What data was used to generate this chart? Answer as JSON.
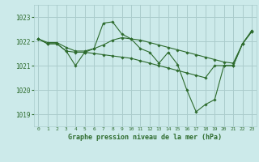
{
  "background_color": "#cceaea",
  "grid_color": "#aacccc",
  "line_color": "#2d6b2d",
  "title": "Graphe pression niveau de la mer (hPa)",
  "xlim": [
    -0.5,
    23.5
  ],
  "ylim": [
    1018.5,
    1023.5
  ],
  "yticks": [
    1019,
    1020,
    1021,
    1022,
    1023
  ],
  "xticks": [
    0,
    1,
    2,
    3,
    4,
    5,
    6,
    7,
    8,
    9,
    10,
    11,
    12,
    13,
    14,
    15,
    16,
    17,
    18,
    19,
    20,
    21,
    22,
    23
  ],
  "series": [
    {
      "x": [
        0,
        1,
        2,
        3,
        4,
        5,
        6,
        7,
        8,
        9,
        10,
        11,
        12,
        13,
        14,
        15,
        16,
        17,
        18,
        19,
        20,
        21,
        22,
        23
      ],
      "y": [
        1022.1,
        1021.9,
        1021.9,
        1021.6,
        1021.0,
        1021.55,
        1021.7,
        1022.75,
        1022.8,
        1022.3,
        1022.1,
        1021.7,
        1021.55,
        1021.1,
        1021.55,
        1021.05,
        1020.0,
        1019.1,
        1019.4,
        1019.6,
        1021.0,
        1021.0,
        1021.9,
        1022.45
      ]
    },
    {
      "x": [
        0,
        1,
        2,
        3,
        4,
        5,
        6,
        7,
        8,
        9,
        10,
        11,
        12,
        13,
        14,
        15,
        16,
        17,
        18,
        19,
        20,
        21,
        22,
        23
      ],
      "y": [
        1022.1,
        1021.95,
        1021.95,
        1021.75,
        1021.6,
        1021.6,
        1021.7,
        1021.85,
        1022.05,
        1022.15,
        1022.1,
        1022.05,
        1021.95,
        1021.85,
        1021.75,
        1021.65,
        1021.55,
        1021.45,
        1021.35,
        1021.25,
        1021.15,
        1021.1,
        1021.9,
        1022.4
      ]
    },
    {
      "x": [
        0,
        1,
        2,
        3,
        4,
        5,
        6,
        7,
        8,
        9,
        10,
        11,
        12,
        13,
        14,
        15,
        16,
        17,
        18,
        19,
        20,
        21,
        22,
        23
      ],
      "y": [
        1022.1,
        1021.9,
        1021.9,
        1021.6,
        1021.55,
        1021.55,
        1021.5,
        1021.45,
        1021.4,
        1021.35,
        1021.3,
        1021.2,
        1021.1,
        1021.0,
        1020.9,
        1020.8,
        1020.7,
        1020.6,
        1020.5,
        1021.0,
        1021.0,
        1021.0,
        1021.9,
        1022.4
      ]
    }
  ]
}
